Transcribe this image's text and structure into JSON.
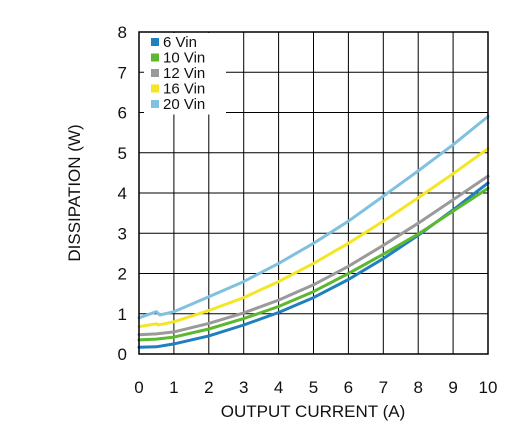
{
  "chart_data": {
    "type": "line",
    "title": "",
    "xlabel": "OUTPUT CURRENT (A)",
    "ylabel": "DISSIPATION (W)",
    "xlim": [
      0,
      10
    ],
    "ylim": [
      0,
      8
    ],
    "xticks": [
      "0",
      "1",
      "2",
      "3",
      "4",
      "5",
      "6",
      "7",
      "8",
      "9",
      "10"
    ],
    "yticks": [
      "0",
      "1",
      "2",
      "3",
      "4",
      "5",
      "6",
      "7",
      "8"
    ],
    "grid": true,
    "legend_position": "top-left",
    "series": [
      {
        "name": "6 Vin",
        "color": "#1f7fc0",
        "points": [
          [
            0,
            0.17
          ],
          [
            0.5,
            0.18
          ],
          [
            1,
            0.25
          ],
          [
            2,
            0.45
          ],
          [
            3,
            0.72
          ],
          [
            4,
            1.03
          ],
          [
            5,
            1.4
          ],
          [
            6,
            1.85
          ],
          [
            7,
            2.37
          ],
          [
            8,
            2.95
          ],
          [
            9,
            3.58
          ],
          [
            10,
            4.25
          ]
        ]
      },
      {
        "name": "10 Vin",
        "color": "#5cb82e",
        "points": [
          [
            0,
            0.35
          ],
          [
            0.5,
            0.37
          ],
          [
            1,
            0.42
          ],
          [
            2,
            0.62
          ],
          [
            3,
            0.88
          ],
          [
            4,
            1.18
          ],
          [
            5,
            1.55
          ],
          [
            6,
            2.0
          ],
          [
            7,
            2.48
          ],
          [
            8,
            2.98
          ],
          [
            9,
            3.55
          ],
          [
            10,
            4.12
          ]
        ]
      },
      {
        "name": "12 Vin",
        "color": "#9a9a9a",
        "points": [
          [
            0,
            0.48
          ],
          [
            0.5,
            0.5
          ],
          [
            1,
            0.55
          ],
          [
            2,
            0.76
          ],
          [
            3,
            1.02
          ],
          [
            4,
            1.34
          ],
          [
            5,
            1.72
          ],
          [
            6,
            2.18
          ],
          [
            7,
            2.7
          ],
          [
            8,
            3.25
          ],
          [
            9,
            3.83
          ],
          [
            10,
            4.42
          ]
        ]
      },
      {
        "name": "16 Vin",
        "color": "#f5e625",
        "points": [
          [
            0,
            0.68
          ],
          [
            0.5,
            0.75
          ],
          [
            0.55,
            0.72
          ],
          [
            1,
            0.8
          ],
          [
            2,
            1.08
          ],
          [
            3,
            1.4
          ],
          [
            4,
            1.8
          ],
          [
            5,
            2.25
          ],
          [
            6,
            2.75
          ],
          [
            7,
            3.3
          ],
          [
            8,
            3.88
          ],
          [
            9,
            4.48
          ],
          [
            10,
            5.1
          ]
        ]
      },
      {
        "name": "20 Vin",
        "color": "#80c1e0",
        "points": [
          [
            0,
            0.9
          ],
          [
            0.5,
            1.05
          ],
          [
            0.6,
            0.97
          ],
          [
            1,
            1.05
          ],
          [
            2,
            1.42
          ],
          [
            3,
            1.8
          ],
          [
            4,
            2.25
          ],
          [
            5,
            2.75
          ],
          [
            6,
            3.3
          ],
          [
            7,
            3.92
          ],
          [
            8,
            4.55
          ],
          [
            9,
            5.2
          ],
          [
            10,
            5.9
          ]
        ]
      }
    ]
  }
}
